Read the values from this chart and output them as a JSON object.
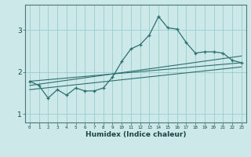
{
  "xlabel": "Humidex (Indice chaleur)",
  "ylabel": "",
  "background_color": "#cce8e8",
  "line_color": "#2d7070",
  "grid_color": "#99cccc",
  "xlim": [
    -0.5,
    23.5
  ],
  "ylim": [
    0.8,
    3.6
  ],
  "yticks": [
    1,
    2,
    3
  ],
  "xticks": [
    0,
    1,
    2,
    3,
    4,
    5,
    6,
    7,
    8,
    9,
    10,
    11,
    12,
    13,
    14,
    15,
    16,
    17,
    18,
    19,
    20,
    21,
    22,
    23
  ],
  "line1_x": [
    0,
    1,
    2,
    3,
    4,
    5,
    6,
    7,
    8,
    9,
    10,
    11,
    12,
    13,
    14,
    15,
    16,
    17,
    18,
    19,
    20,
    21,
    22,
    23
  ],
  "line1_y": [
    1.78,
    1.68,
    1.38,
    1.58,
    1.45,
    1.62,
    1.55,
    1.55,
    1.62,
    1.88,
    2.25,
    2.55,
    2.65,
    2.88,
    3.32,
    3.05,
    3.02,
    2.7,
    2.45,
    2.48,
    2.48,
    2.45,
    2.28,
    2.22
  ],
  "line2_x": [
    0,
    23
  ],
  "line2_y": [
    1.78,
    2.22
  ],
  "line3_x": [
    0,
    23
  ],
  "line3_y": [
    1.68,
    2.38
  ],
  "line4_x": [
    0,
    23
  ],
  "line4_y": [
    1.58,
    2.12
  ]
}
